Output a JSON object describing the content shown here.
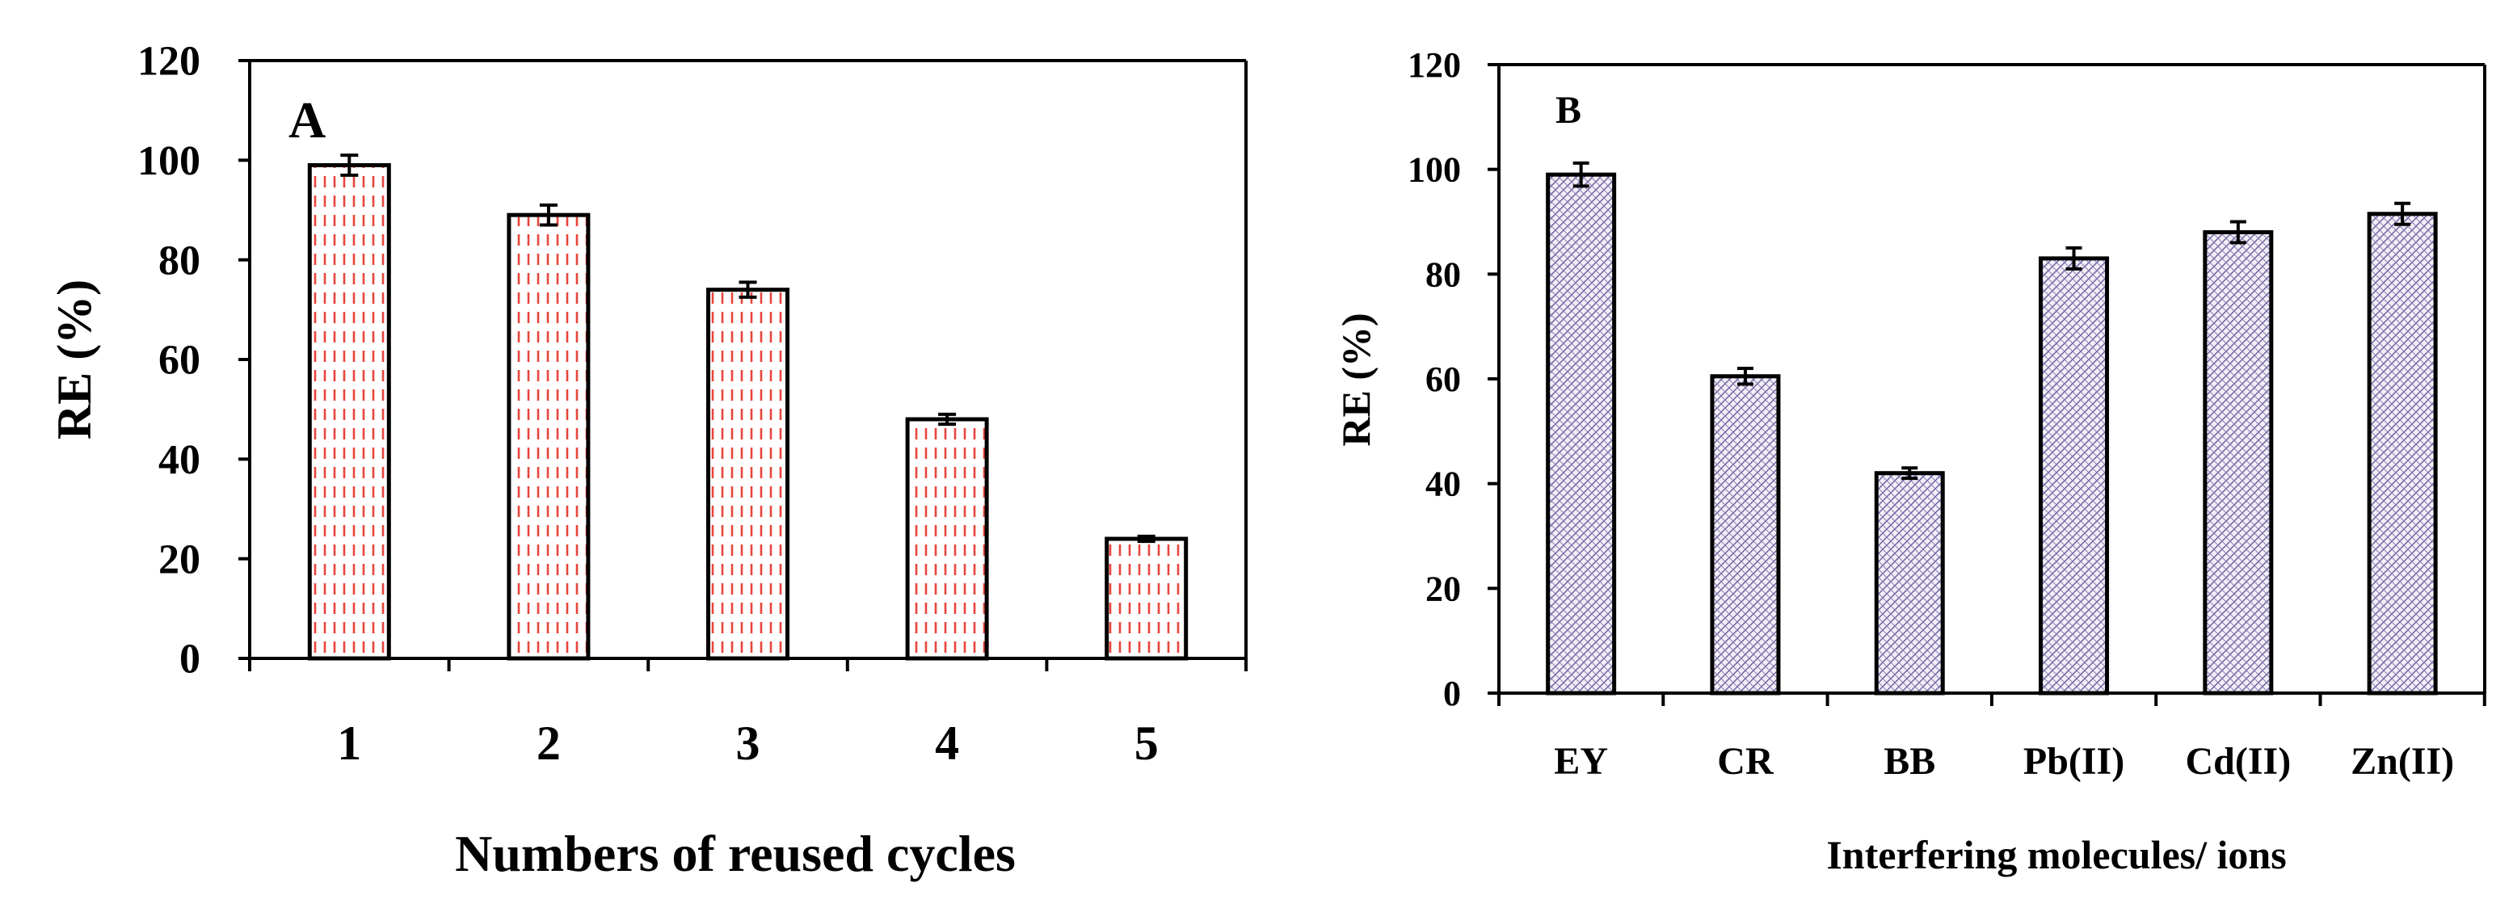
{
  "chart_data": [
    {
      "type": "bar",
      "panel": "A",
      "title": "",
      "panel_label": "A",
      "categories": [
        "1",
        "2",
        "3",
        "4",
        "5"
      ],
      "values": [
        99,
        89,
        74,
        48,
        24
      ],
      "errors": [
        2,
        2,
        1.5,
        1,
        0.5
      ],
      "xlabel": "Numbers of reused cycles",
      "ylabel": "RE (%)",
      "ylim": [
        0,
        120
      ],
      "yticks": [
        "0",
        "20",
        "40",
        "60",
        "80",
        "100",
        "120"
      ],
      "grid": false,
      "bar_fill": "dashed vertical red hatch",
      "hatch_color": "#e8453c",
      "bar_edge_color": "#000000"
    },
    {
      "type": "bar",
      "panel": "B",
      "title": "",
      "panel_label": "B",
      "categories": [
        "EY",
        "CR",
        "BB",
        "Pb(II)",
        "Cd(II)",
        "Zn(II)"
      ],
      "values": [
        99,
        60.5,
        42,
        83,
        88,
        91.5
      ],
      "errors": [
        2.2,
        1.5,
        1,
        2,
        2,
        2
      ],
      "xlabel": "Interfering molecules/ ions",
      "ylabel": "RE (%)",
      "ylim": [
        0,
        120
      ],
      "yticks": [
        "0",
        "20",
        "40",
        "60",
        "80",
        "100",
        "120"
      ],
      "grid": false,
      "bar_fill": "purple crosshatch pattern",
      "hatch_color": "#6a5a9a",
      "bar_edge_color": "#000000"
    }
  ]
}
